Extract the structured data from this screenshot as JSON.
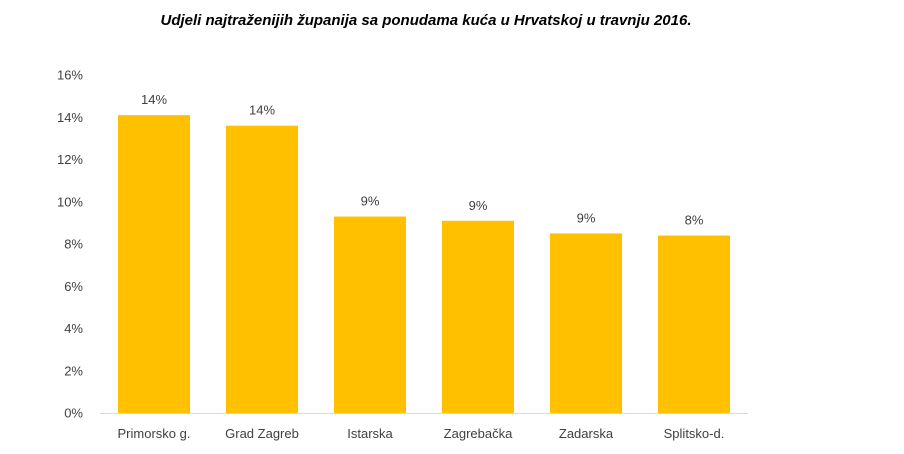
{
  "chart_data": {
    "type": "bar",
    "title": "Udjeli najtraženijih županija sa ponudama kuća u Hrvatskoj u travnju 2016.",
    "xlabel": "",
    "ylabel": "",
    "categories": [
      "Primorsko g.",
      "Grad Zagreb",
      "Istarska",
      "Zagrebačka",
      "Zadarska",
      "Splitsko-d."
    ],
    "values": [
      14.1,
      13.6,
      9.3,
      9.1,
      8.5,
      8.4
    ],
    "data_labels": [
      "14%",
      "14%",
      "9%",
      "9%",
      "9%",
      "8%"
    ],
    "ylim": [
      0,
      16
    ],
    "yticks": [
      0,
      2,
      4,
      6,
      8,
      10,
      12,
      14,
      16
    ],
    "ytick_labels": [
      "0%",
      "2%",
      "4%",
      "6%",
      "8%",
      "10%",
      "12%",
      "14%",
      "16%"
    ],
    "grid": false,
    "legend": "none",
    "bar_color": "#FFC000",
    "axis_color": "#D9D9D9"
  }
}
